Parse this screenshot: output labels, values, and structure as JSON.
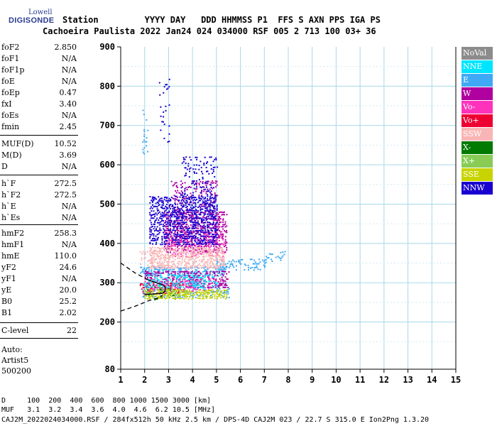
{
  "logo": {
    "line1": "Lowell",
    "line2": "DIGISONDE"
  },
  "header": {
    "labels": "Station         YYYY DAY   DDD HHMMSS P1  FFS S AXN PPS IGA PS",
    "values": "Cachoeira Paulista 2022 Jan24 024 034000 RSF 005 2 713 100 03+ 36"
  },
  "params": [
    {
      "name": "foF2",
      "value": "2.850"
    },
    {
      "name": "foF1",
      "value": "N/A"
    },
    {
      "name": "foF1p",
      "value": "N/A"
    },
    {
      "name": "foE",
      "value": "N/A"
    },
    {
      "name": "foEp",
      "value": "0.47"
    },
    {
      "name": "fxI",
      "value": "3.40"
    },
    {
      "name": "foEs",
      "value": "N/A"
    },
    {
      "name": "fmin",
      "value": "2.45"
    },
    {
      "name": "MUF(D)",
      "value": "10.52"
    },
    {
      "name": "M(D)",
      "value": "3.69"
    },
    {
      "name": "D",
      "value": "N/A"
    },
    {
      "name": "h`F",
      "value": "272.5"
    },
    {
      "name": "h`F2",
      "value": "272.5"
    },
    {
      "name": "h`E",
      "value": "N/A"
    },
    {
      "name": "h`Es",
      "value": "N/A"
    },
    {
      "name": "hmF2",
      "value": "258.3"
    },
    {
      "name": "hmF1",
      "value": "N/A"
    },
    {
      "name": "hmE",
      "value": "110.0"
    },
    {
      "name": "yF2",
      "value": "24.6"
    },
    {
      "name": "yF1",
      "value": "N/A"
    },
    {
      "name": "yE",
      "value": "20.0"
    },
    {
      "name": "B0",
      "value": "25.2"
    },
    {
      "name": "B1",
      "value": "2.02"
    },
    {
      "name": "C-level",
      "value": "22"
    }
  ],
  "autoscale": {
    "line1": "Auto:",
    "line2": "Artist5",
    "line3": "500200"
  },
  "legend": [
    {
      "label": "NoVal",
      "bg": "#8c8c8c",
      "fg": "#ffffff"
    },
    {
      "label": "NNE",
      "bg": "#00e5ff",
      "fg": "#ffffff"
    },
    {
      "label": "E",
      "bg": "#3fa9f5",
      "fg": "#ffffff"
    },
    {
      "label": "W",
      "bg": "#b0009f",
      "fg": "#ffffff"
    },
    {
      "label": "Vo-",
      "bg": "#ff33bb",
      "fg": "#ffffff"
    },
    {
      "label": "Vo+",
      "bg": "#ee0033",
      "fg": "#ffffff"
    },
    {
      "label": "SSW",
      "bg": "#f9b5b5",
      "fg": "#ffffff"
    },
    {
      "label": "X-",
      "bg": "#007a00",
      "fg": "#ffffff"
    },
    {
      "label": "X+",
      "bg": "#88cc55",
      "fg": "#ffffff"
    },
    {
      "label": "SSE",
      "bg": "#c8d400",
      "fg": "#ffffff"
    },
    {
      "label": "NNW",
      "bg": "#1a00d0",
      "fg": "#ffffff"
    }
  ],
  "footer": {
    "distance_row": "D     100  200  400  600  800 1000 1500 3000 [km]",
    "muf_row": "MUF   3.1  3.2  3.4  3.6  4.0  4.6  6.2 10.5 [MHz]",
    "file_row": "CAJ2M_2022024034000.RSF / 284fx512h 50 kHz 2.5 km / DPS-4D CAJ2M 023 / 22.7 S 315.0 E Ion2Png 1.3.20"
  },
  "chart_data": {
    "type": "scatter",
    "title": "",
    "xlabel": "",
    "ylabel": "",
    "xlim": [
      1,
      15
    ],
    "ylim": [
      80,
      900
    ],
    "x_ticks": [
      1,
      2,
      3,
      4,
      5,
      6,
      7,
      8,
      9,
      10,
      11,
      12,
      13,
      14,
      15
    ],
    "y_ticks": [
      80,
      200,
      300,
      400,
      500,
      600,
      700,
      800,
      900
    ],
    "grid": true,
    "legend_position": "right",
    "clusters": [
      {
        "series": "E",
        "x": [
          1.8,
          5.3
        ],
        "y": [
          320,
          340
        ],
        "density": 0.55
      },
      {
        "series": "E",
        "x": [
          5.0,
          7.0
        ],
        "y": [
          335,
          360
        ],
        "density": 0.3
      },
      {
        "series": "E",
        "x": [
          7.0,
          7.9
        ],
        "y": [
          355,
          380
        ],
        "density": 0.15
      },
      {
        "series": "E",
        "x": [
          1.9,
          5.5
        ],
        "y": [
          265,
          300
        ],
        "density": 0.35
      },
      {
        "series": "E",
        "x": [
          1.9,
          2.1
        ],
        "y": [
          620,
          740
        ],
        "density": 0.15
      },
      {
        "series": "W",
        "x": [
          2.0,
          5.5
        ],
        "y": [
          290,
          330
        ],
        "density": 0.45
      },
      {
        "series": "W",
        "x": [
          2.8,
          5.4
        ],
        "y": [
          380,
          480
        ],
        "density": 0.45
      },
      {
        "series": "W",
        "x": [
          3.0,
          5.0
        ],
        "y": [
          480,
          560
        ],
        "density": 0.18
      },
      {
        "series": "Vo-",
        "x": [
          2.0,
          5.0
        ],
        "y": [
          280,
          310
        ],
        "density": 0.3
      },
      {
        "series": "Vo-",
        "x": [
          3.0,
          5.3
        ],
        "y": [
          370,
          430
        ],
        "density": 0.3
      },
      {
        "series": "Vo+",
        "x": [
          1.8,
          3.5
        ],
        "y": [
          275,
          300
        ],
        "density": 0.25
      },
      {
        "series": "SSW",
        "x": [
          2.2,
          5.3
        ],
        "y": [
          340,
          390
        ],
        "density": 0.55
      },
      {
        "series": "SSW",
        "x": [
          1.8,
          3.0
        ],
        "y": [
          340,
          380
        ],
        "density": 0.3
      },
      {
        "series": "X-",
        "x": [
          2.0,
          3.3
        ],
        "y": [
          260,
          290
        ],
        "density": 0.15
      },
      {
        "series": "X+",
        "x": [
          2.0,
          4.0
        ],
        "y": [
          270,
          295
        ],
        "density": 0.2
      },
      {
        "series": "SSE",
        "x": [
          2.0,
          5.4
        ],
        "y": [
          262,
          282
        ],
        "density": 0.5
      },
      {
        "series": "NNW",
        "x": [
          2.2,
          5.0
        ],
        "y": [
          400,
          520
        ],
        "density": 0.5
      },
      {
        "series": "NNW",
        "x": [
          3.5,
          5.0
        ],
        "y": [
          520,
          620
        ],
        "density": 0.18
      },
      {
        "series": "NNW",
        "x": [
          2.6,
          3.0
        ],
        "y": [
          650,
          820
        ],
        "density": 0.08
      },
      {
        "series": "NNE",
        "x": [
          2.0,
          5.0
        ],
        "y": [
          290,
          320
        ],
        "density": 0.25
      }
    ],
    "traces": [
      {
        "name": "ordinary-trace",
        "style": "solid",
        "points": [
          [
            2.0,
            270
          ],
          [
            2.5,
            272
          ],
          [
            2.75,
            273
          ],
          [
            2.85,
            278
          ],
          [
            2.85,
            290
          ],
          [
            2.75,
            295
          ],
          [
            2.5,
            300
          ],
          [
            2.2,
            306
          ],
          [
            2.0,
            312
          ]
        ]
      },
      {
        "name": "profile-lower",
        "style": "dashed",
        "points": [
          [
            1.0,
            228
          ],
          [
            1.6,
            240
          ],
          [
            2.2,
            255
          ],
          [
            2.6,
            262
          ],
          [
            2.75,
            268
          ]
        ]
      },
      {
        "name": "profile-upper",
        "style": "dashed",
        "points": [
          [
            1.0,
            350
          ],
          [
            1.6,
            325
          ],
          [
            2.0,
            312
          ]
        ]
      }
    ]
  }
}
